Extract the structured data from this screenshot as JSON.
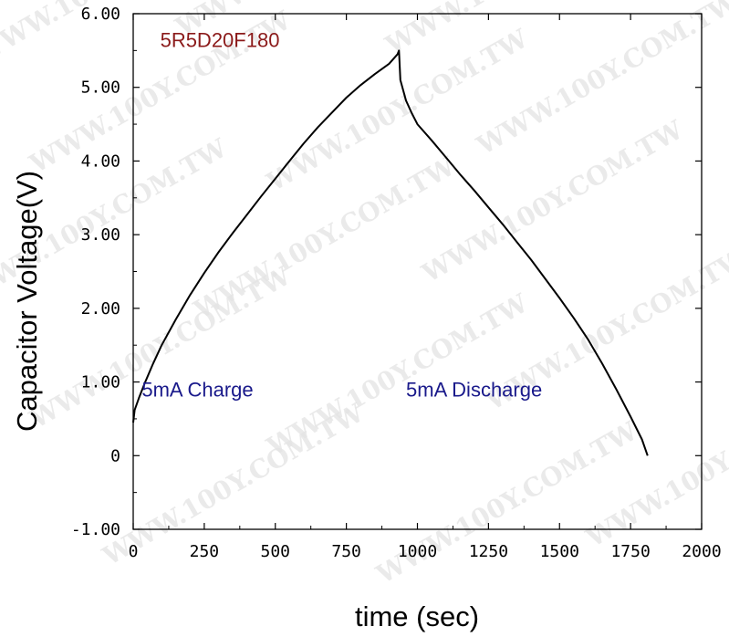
{
  "chart_data": {
    "type": "line",
    "xlabel": "time (sec)",
    "ylabel": "Capacitor Voltage(V)",
    "xlim": [
      0,
      2000
    ],
    "ylim": [
      -1,
      6
    ],
    "x_ticks": [
      0,
      250,
      500,
      750,
      1000,
      1250,
      1500,
      1750,
      2000
    ],
    "x_tick_labels": [
      "0",
      "250",
      "500",
      "750",
      "1000",
      "1250",
      "1500",
      "1750",
      "2000"
    ],
    "y_ticks": [
      -1,
      0,
      1,
      2,
      3,
      4,
      5,
      6
    ],
    "y_tick_labels": [
      "-1.00",
      "0",
      "1.00",
      "2.00",
      "3.00",
      "4.00",
      "5.00",
      "6.00"
    ],
    "grid": false,
    "series": [
      {
        "color": "#000000",
        "x": [
          0,
          5,
          20,
          40,
          70,
          100,
          150,
          200,
          250,
          300,
          350,
          400,
          450,
          500,
          550,
          600,
          650,
          700,
          750,
          800,
          850,
          900,
          930,
          935,
          940,
          960,
          980,
          1000,
          1050,
          1100,
          1150,
          1200,
          1250,
          1300,
          1350,
          1400,
          1450,
          1500,
          1550,
          1600,
          1650,
          1700,
          1750,
          1790,
          1810
        ],
        "values": [
          0.45,
          0.62,
          0.78,
          0.98,
          1.25,
          1.5,
          1.85,
          2.18,
          2.48,
          2.76,
          3.02,
          3.27,
          3.52,
          3.76,
          4.0,
          4.24,
          4.46,
          4.66,
          4.86,
          5.03,
          5.18,
          5.32,
          5.45,
          5.5,
          5.1,
          4.82,
          4.65,
          4.5,
          4.28,
          4.05,
          3.82,
          3.6,
          3.37,
          3.14,
          2.9,
          2.66,
          2.4,
          2.14,
          1.87,
          1.58,
          1.25,
          0.9,
          0.53,
          0.22,
          0.0
        ]
      }
    ],
    "annotations": [
      {
        "text": "5R5D20F180",
        "color": "#8b1a1a",
        "x": 95,
        "y": 5.55
      },
      {
        "text": "5mA Charge",
        "color": "#1a1a8b",
        "x": 30,
        "y": 0.8
      },
      {
        "text": "5mA Discharge",
        "color": "#1a1a8b",
        "x": 960,
        "y": 0.8
      }
    ]
  },
  "watermark": "WWW.100Y.COM.TW"
}
